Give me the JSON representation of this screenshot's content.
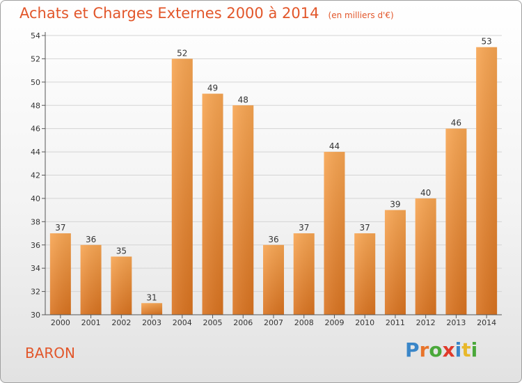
{
  "title": "Achats et Charges Externes 2000 à 2014",
  "unit": "(en milliers d'€)",
  "commune": "BARON",
  "logo": {
    "letters": [
      "P",
      "r",
      "o",
      "x",
      "i",
      "t",
      "i"
    ],
    "colors": [
      "#3a86c8",
      "#e8742a",
      "#4aa83a",
      "#e03a2a",
      "#3a86c8",
      "#e8b82a",
      "#4aa83a"
    ]
  },
  "colors": {
    "bar_light": "#f7a552",
    "bar_dark": "#d97320",
    "title": "#e2562a"
  },
  "chart_data": {
    "type": "bar",
    "categories": [
      "2000",
      "2001",
      "2002",
      "2003",
      "2004",
      "2005",
      "2006",
      "2007",
      "2008",
      "2009",
      "2010",
      "2011",
      "2012",
      "2013",
      "2014"
    ],
    "values": [
      37,
      36,
      35,
      31,
      52,
      49,
      48,
      36,
      37,
      44,
      37,
      39,
      40,
      46,
      53
    ],
    "data_labels": [
      "37",
      "36",
      "35",
      "31",
      "52",
      "49",
      "48",
      "36",
      "37",
      "44",
      "37",
      "39",
      "40",
      "46",
      "53"
    ],
    "yticks": [
      "30",
      "32",
      "34",
      "36",
      "38",
      "40",
      "42",
      "44",
      "46",
      "48",
      "50",
      "52",
      "54"
    ],
    "ylim": [
      30,
      54
    ],
    "grid": true
  }
}
